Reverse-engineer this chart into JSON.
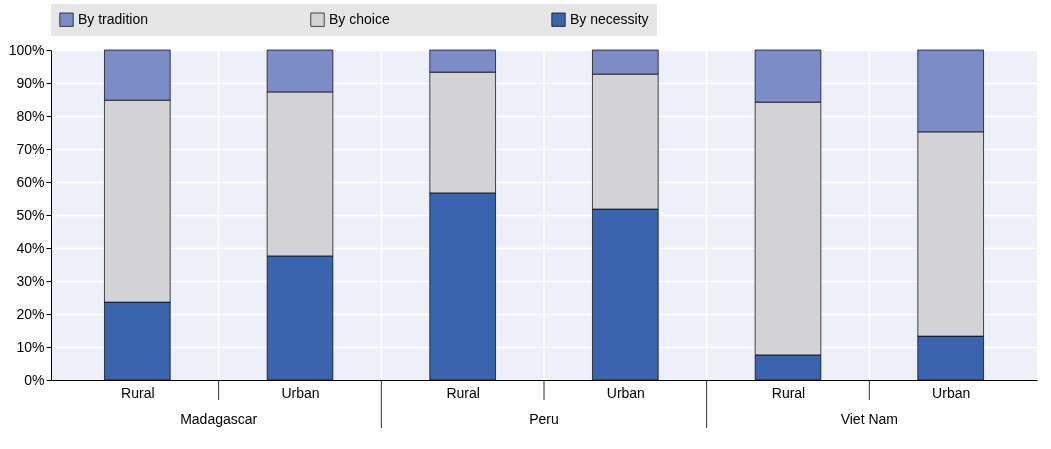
{
  "chart_data": {
    "type": "bar",
    "stacked": true,
    "categories": [
      "Rural",
      "Urban",
      "Rural",
      "Urban",
      "Rural",
      "Urban"
    ],
    "series": [
      {
        "name": "By necessity",
        "color": "#3a64ae",
        "values": [
          23.6,
          37.6,
          56.7,
          51.8,
          7.6,
          13.3
        ]
      },
      {
        "name": "By choice",
        "color": "#d3d3d6",
        "values": [
          61.2,
          49.7,
          36.6,
          40.9,
          76.6,
          61.9
        ]
      },
      {
        "name": "By tradition",
        "color": "#7b8cc7",
        "values": [
          15.2,
          12.7,
          6.7,
          7.3,
          15.8,
          24.8
        ]
      }
    ],
    "annotations": [
      "Madagascar",
      "Peru",
      "Viet Nam"
    ],
    "ylim": [
      0,
      100
    ],
    "yticks": [
      {
        "value": 0,
        "label": "0%"
      },
      {
        "value": 10,
        "label": "10%"
      },
      {
        "value": 20,
        "label": "20%"
      },
      {
        "value": 30,
        "label": "30%"
      },
      {
        "value": 40,
        "label": "40%"
      },
      {
        "value": 50,
        "label": "50%"
      },
      {
        "value": 60,
        "label": "60%"
      },
      {
        "value": 70,
        "label": "70%"
      },
      {
        "value": 80,
        "label": "80%"
      },
      {
        "value": 90,
        "label": "90%"
      },
      {
        "value": 100,
        "label": "100%"
      }
    ],
    "grid": true,
    "legend": "top"
  }
}
